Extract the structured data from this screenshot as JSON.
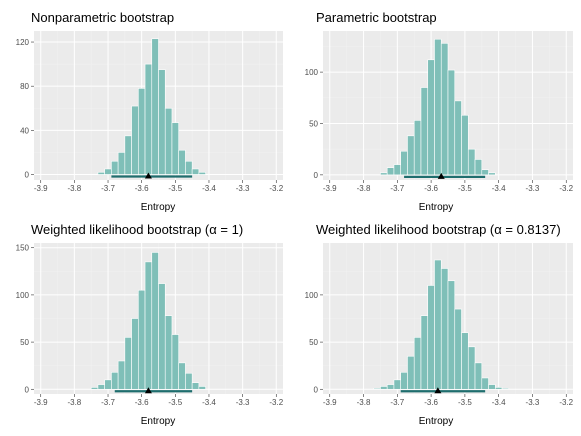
{
  "colors": {
    "panel_bg": "#ebebeb",
    "grid_major": "#ffffff",
    "grid_minor": "#f2f2f2",
    "bar_fill": "#7fbfb8",
    "interval_line": "#1f6e6e",
    "point": "#000000"
  },
  "chart_data": [
    {
      "type": "bar",
      "title": "Nonparametric bootstrap",
      "xlabel": "Entropy",
      "ylabel": "",
      "xlim": [
        -3.92,
        -3.18
      ],
      "ylim": [
        -5,
        130
      ],
      "xticks": [
        "-3.9",
        "-3.8",
        "-3.7",
        "-3.6",
        "-3.5",
        "-3.4",
        "-3.3",
        "-3.2"
      ],
      "yticks": [
        "0",
        "40",
        "80",
        "120"
      ],
      "bins_center": [
        -3.72,
        -3.7,
        -3.68,
        -3.66,
        -3.64,
        -3.62,
        -3.6,
        -3.58,
        -3.56,
        -3.54,
        -3.52,
        -3.5,
        -3.48,
        -3.46,
        -3.44,
        -3.42
      ],
      "values": [
        2,
        5,
        12,
        20,
        35,
        62,
        78,
        100,
        123,
        95,
        60,
        47,
        22,
        12,
        5,
        2
      ],
      "interval": {
        "lower": -3.69,
        "upper": -3.45,
        "point": -3.58
      }
    },
    {
      "type": "bar",
      "title": "Parametric bootstrap",
      "xlabel": "Entropy",
      "ylabel": "",
      "xlim": [
        -3.92,
        -3.18
      ],
      "ylim": [
        -5,
        140
      ],
      "xticks": [
        "-3.9",
        "-3.8",
        "-3.7",
        "-3.6",
        "-3.5",
        "-3.4",
        "-3.3",
        "-3.2"
      ],
      "yticks": [
        "0",
        "50",
        "100"
      ],
      "bins_center": [
        -3.74,
        -3.72,
        -3.7,
        -3.68,
        -3.66,
        -3.64,
        -3.62,
        -3.6,
        -3.58,
        -3.56,
        -3.54,
        -3.52,
        -3.5,
        -3.48,
        -3.46,
        -3.44,
        -3.42
      ],
      "values": [
        2,
        7,
        10,
        23,
        38,
        53,
        85,
        112,
        132,
        128,
        102,
        72,
        58,
        25,
        15,
        5,
        2
      ],
      "interval": {
        "lower": -3.68,
        "upper": -3.44,
        "point": -3.57
      }
    },
    {
      "type": "bar",
      "title": "Weighted likelihood bootstrap (α = 1)",
      "xlabel": "Entropy",
      "ylabel": "",
      "xlim": [
        -3.92,
        -3.18
      ],
      "ylim": [
        -5,
        155
      ],
      "xticks": [
        "-3.9",
        "-3.8",
        "-3.7",
        "-3.6",
        "-3.5",
        "-3.4",
        "-3.3",
        "-3.2"
      ],
      "yticks": [
        "0",
        "50",
        "100",
        "150"
      ],
      "bins_center": [
        -3.74,
        -3.72,
        -3.7,
        -3.68,
        -3.66,
        -3.64,
        -3.62,
        -3.6,
        -3.58,
        -3.56,
        -3.54,
        -3.52,
        -3.5,
        -3.48,
        -3.46,
        -3.44,
        -3.42
      ],
      "values": [
        2,
        5,
        10,
        18,
        30,
        55,
        75,
        105,
        135,
        145,
        112,
        78,
        58,
        28,
        17,
        7,
        3
      ],
      "interval": {
        "lower": -3.68,
        "upper": -3.45,
        "point": -3.58
      }
    },
    {
      "type": "bar",
      "title": "Weighted likelihood bootstrap (α = 0.8137)",
      "xlabel": "Entropy",
      "ylabel": "",
      "xlim": [
        -3.92,
        -3.18
      ],
      "ylim": [
        -5,
        155
      ],
      "xticks": [
        "-3.9",
        "-3.8",
        "-3.7",
        "-3.6",
        "-3.5",
        "-3.4",
        "-3.3",
        "-3.2"
      ],
      "yticks": [
        "0",
        "50",
        "100"
      ],
      "bins_center": [
        -3.76,
        -3.74,
        -3.72,
        -3.7,
        -3.68,
        -3.66,
        -3.64,
        -3.62,
        -3.6,
        -3.58,
        -3.56,
        -3.54,
        -3.52,
        -3.5,
        -3.48,
        -3.46,
        -3.44,
        -3.42,
        -3.4,
        -3.38
      ],
      "values": [
        1,
        3,
        5,
        10,
        18,
        35,
        55,
        78,
        110,
        137,
        128,
        115,
        85,
        60,
        45,
        28,
        12,
        5,
        2,
        1
      ],
      "interval": {
        "lower": -3.69,
        "upper": -3.44,
        "point": -3.58
      }
    }
  ]
}
